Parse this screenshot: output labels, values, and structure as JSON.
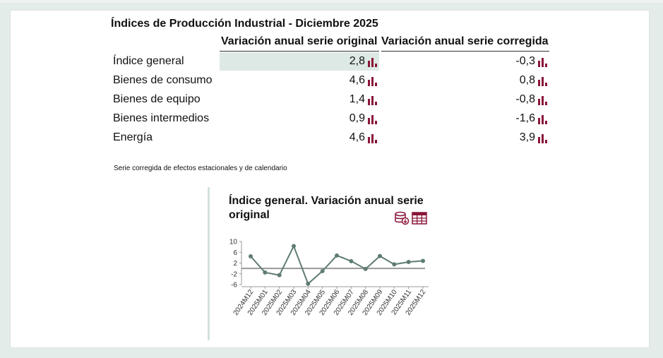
{
  "title": "Índices de Producción Industrial - Diciembre 2025",
  "columns": [
    "Variación anual serie original",
    "Variación anual serie corregida"
  ],
  "rows": [
    {
      "label": "Índice general",
      "original": "2,8",
      "corregida": "-0,3"
    },
    {
      "label": "Bienes de consumo",
      "original": "4,6",
      "corregida": "0,8"
    },
    {
      "label": "Bienes de equipo",
      "original": "1,4",
      "corregida": "-0,8"
    },
    {
      "label": "Bienes intermedios",
      "original": "0,9",
      "corregida": "-1,6"
    },
    {
      "label": "Energía",
      "original": "4,6",
      "corregida": "3,9"
    }
  ],
  "note": "Serie corregida de efectos estacionales y de calendario",
  "chart_title": "Índice general. Variación anual serie original",
  "icons": {
    "row_chart": "bar-chart-icon",
    "download": "database-download-icon",
    "table": "table-icon"
  },
  "colors": {
    "accent": "#8a1538",
    "line": "#5f7d70",
    "highlight": "#dde9e5"
  },
  "chart_data": {
    "type": "line",
    "title": "Índice general. Variación anual serie original",
    "x": [
      "2024M12",
      "2025M01",
      "2025M02",
      "2025M03",
      "2025M04",
      "2025M05",
      "2025M06",
      "2025M07",
      "2025M08",
      "2025M09",
      "2025M10",
      "2025M11",
      "2025M12"
    ],
    "series": [
      {
        "values": [
          4.5,
          -1.5,
          -2.5,
          8.3,
          -5.7,
          -1.0,
          4.8,
          2.7,
          -0.2,
          4.6,
          1.5,
          2.4,
          2.8
        ]
      }
    ],
    "ylim": [
      -6,
      10
    ],
    "yticks": [
      "10",
      "6",
      "2",
      "-2",
      "-6"
    ],
    "reference_line": 0,
    "grid": false
  }
}
